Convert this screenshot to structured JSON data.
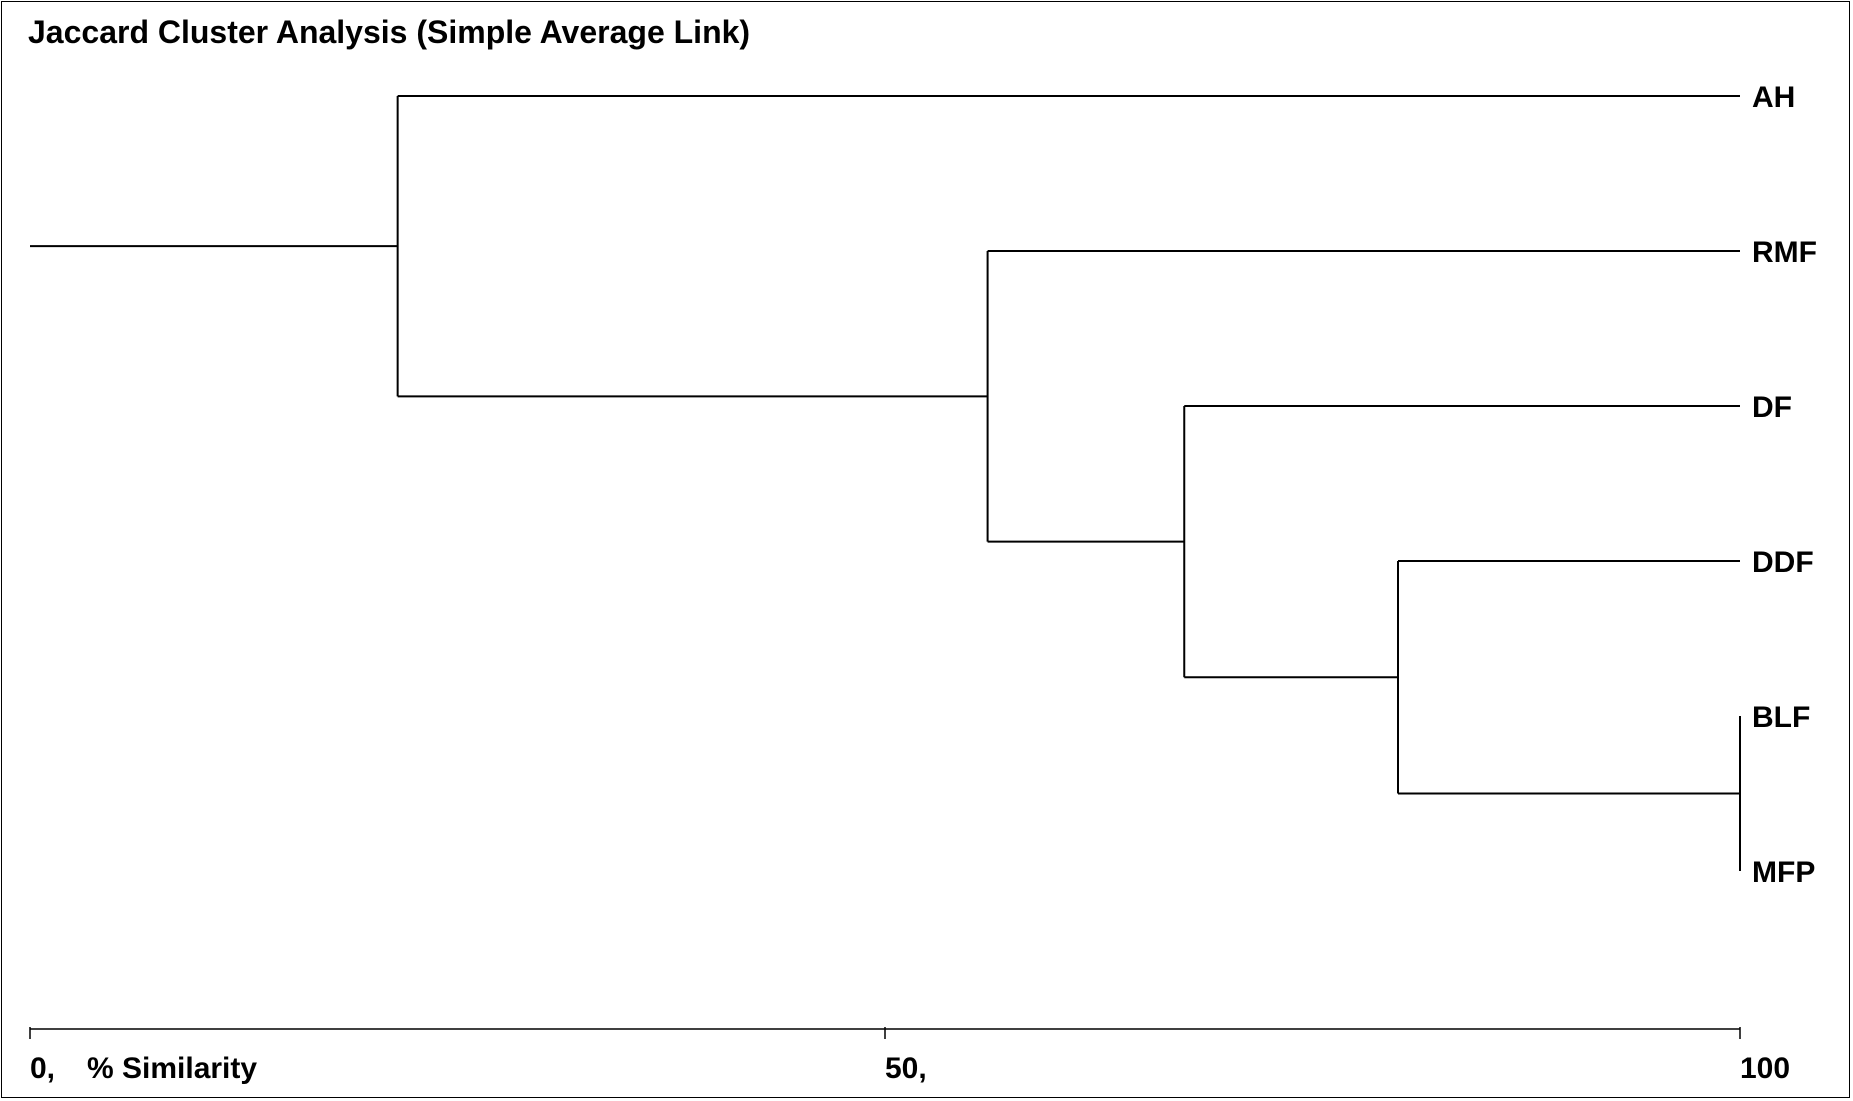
{
  "title": "Jaccard Cluster Analysis (Simple Average Link)",
  "axis": {
    "min": 0,
    "max": 100,
    "ticks": [
      {
        "value": 0,
        "label": "0,"
      },
      {
        "value": 50,
        "label": "50,"
      },
      {
        "value": 100,
        "label": "100"
      }
    ],
    "unit_label": "% Similarity"
  },
  "leaves": [
    "AH",
    "RMF",
    "DF",
    "DDF",
    "BLF",
    "MFP"
  ],
  "merges": [
    {
      "id": "m1",
      "children": [
        "BLF",
        "MFP"
      ],
      "similarity": 100
    },
    {
      "id": "m2",
      "children": [
        "DDF",
        "m1"
      ],
      "similarity": 80
    },
    {
      "id": "m3",
      "children": [
        "DF",
        "m2"
      ],
      "similarity": 67.5
    },
    {
      "id": "m4",
      "children": [
        "RMF",
        "m3"
      ],
      "similarity": 56
    },
    {
      "id": "m5",
      "children": [
        "AH",
        "m4"
      ],
      "similarity": 21.5
    }
  ],
  "root": {
    "node": "m5"
  }
}
